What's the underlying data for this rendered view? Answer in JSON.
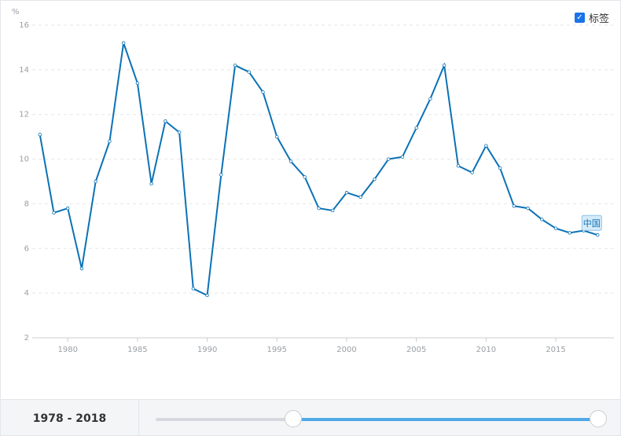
{
  "chart_data": {
    "type": "line",
    "y_unit": "%",
    "legend_toggle": "标签",
    "range_label": "1978 - 2018",
    "x": [
      1978,
      1979,
      1980,
      1981,
      1982,
      1983,
      1984,
      1985,
      1986,
      1987,
      1988,
      1989,
      1990,
      1991,
      1992,
      1993,
      1994,
      1995,
      1996,
      1997,
      1998,
      1999,
      2000,
      2001,
      2002,
      2003,
      2004,
      2005,
      2006,
      2007,
      2008,
      2009,
      2010,
      2011,
      2012,
      2013,
      2014,
      2015,
      2016,
      2017,
      2018
    ],
    "series": [
      {
        "name": "中国",
        "color": "#0b72b5",
        "values": [
          11.1,
          7.6,
          7.8,
          5.1,
          9.0,
          10.8,
          15.2,
          13.4,
          8.9,
          11.7,
          11.2,
          4.2,
          3.9,
          9.3,
          14.2,
          13.9,
          13.0,
          11.0,
          9.9,
          9.2,
          7.8,
          7.7,
          8.5,
          8.3,
          9.1,
          10.0,
          10.1,
          11.4,
          12.7,
          14.2,
          9.7,
          9.4,
          10.6,
          9.6,
          7.9,
          7.8,
          7.3,
          6.9,
          6.7,
          6.8,
          6.6
        ]
      }
    ],
    "xlim": [
      1977,
      2019
    ],
    "xticks": [
      1980,
      1985,
      1990,
      1995,
      2000,
      2005,
      2010,
      2015
    ],
    "ylim": [
      2,
      16
    ],
    "yticks": [
      2,
      4,
      6,
      8,
      10,
      12,
      14,
      16
    ],
    "grid": true
  }
}
